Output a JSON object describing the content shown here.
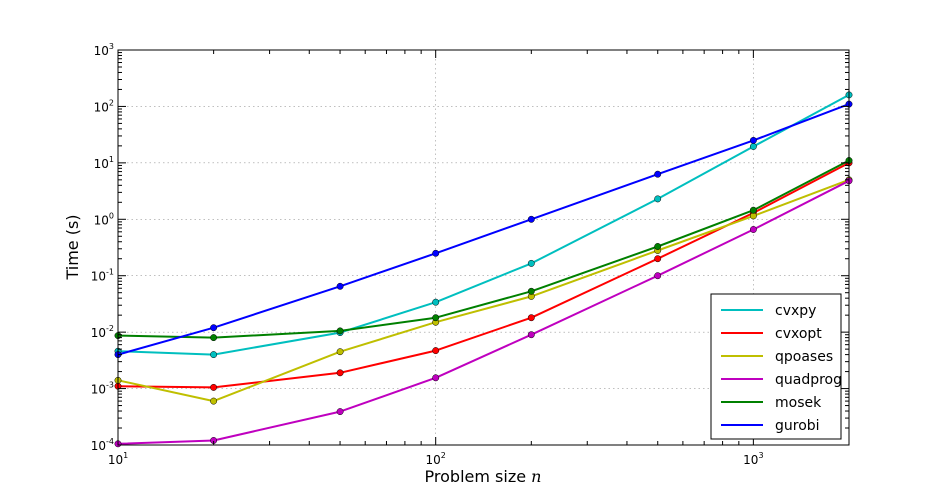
{
  "chart_data": {
    "type": "line",
    "xlabel": "Problem size",
    "xlabel_var": "n",
    "ylabel": "Time (s)",
    "x_scale": "log",
    "y_scale": "log",
    "xlim": [
      10,
      2000
    ],
    "ylim": [
      0.0001,
      1000
    ],
    "grid": true,
    "legend_position": "bottom-right",
    "x_ticks": [
      {
        "base": "10",
        "exp": "1",
        "value": 10
      },
      {
        "base": "10",
        "exp": "2",
        "value": 100
      },
      {
        "base": "10",
        "exp": "3",
        "value": 1000
      }
    ],
    "y_ticks": [
      {
        "base": "10",
        "exp": "-4",
        "value": 0.0001
      },
      {
        "base": "10",
        "exp": "-3",
        "value": 0.001
      },
      {
        "base": "10",
        "exp": "-2",
        "value": 0.01
      },
      {
        "base": "10",
        "exp": "-1",
        "value": 0.1
      },
      {
        "base": "10",
        "exp": "0",
        "value": 1
      },
      {
        "base": "10",
        "exp": "1",
        "value": 10
      },
      {
        "base": "10",
        "exp": "2",
        "value": 100
      },
      {
        "base": "10",
        "exp": "3",
        "value": 1000
      }
    ],
    "x": [
      10,
      20,
      50,
      100,
      200,
      500,
      1000,
      2000
    ],
    "series": [
      {
        "name": "cvxpy",
        "color": "#00bfbf",
        "values": [
          0.0046,
          0.004,
          0.0098,
          0.034,
          0.165,
          2.3,
          19.5,
          160
        ]
      },
      {
        "name": "cvxopt",
        "color": "#ff0000",
        "values": [
          0.0011,
          0.00105,
          0.0019,
          0.0047,
          0.018,
          0.2,
          1.3,
          10
        ]
      },
      {
        "name": "qpoases",
        "color": "#bfbf00",
        "values": [
          0.0014,
          0.0006,
          0.0045,
          0.015,
          0.043,
          0.28,
          1.15,
          5
        ]
      },
      {
        "name": "quadprog",
        "color": "#bf00bf",
        "values": [
          0.000105,
          0.00012,
          0.00039,
          0.00155,
          0.009,
          0.1,
          0.66,
          4.8
        ]
      },
      {
        "name": "mosek",
        "color": "#008000",
        "values": [
          0.0087,
          0.008,
          0.0105,
          0.018,
          0.053,
          0.33,
          1.45,
          11
        ]
      },
      {
        "name": "gurobi",
        "color": "#0000ff",
        "values": [
          0.004,
          0.012,
          0.065,
          0.25,
          1.0,
          6.3,
          25,
          110
        ]
      }
    ]
  }
}
